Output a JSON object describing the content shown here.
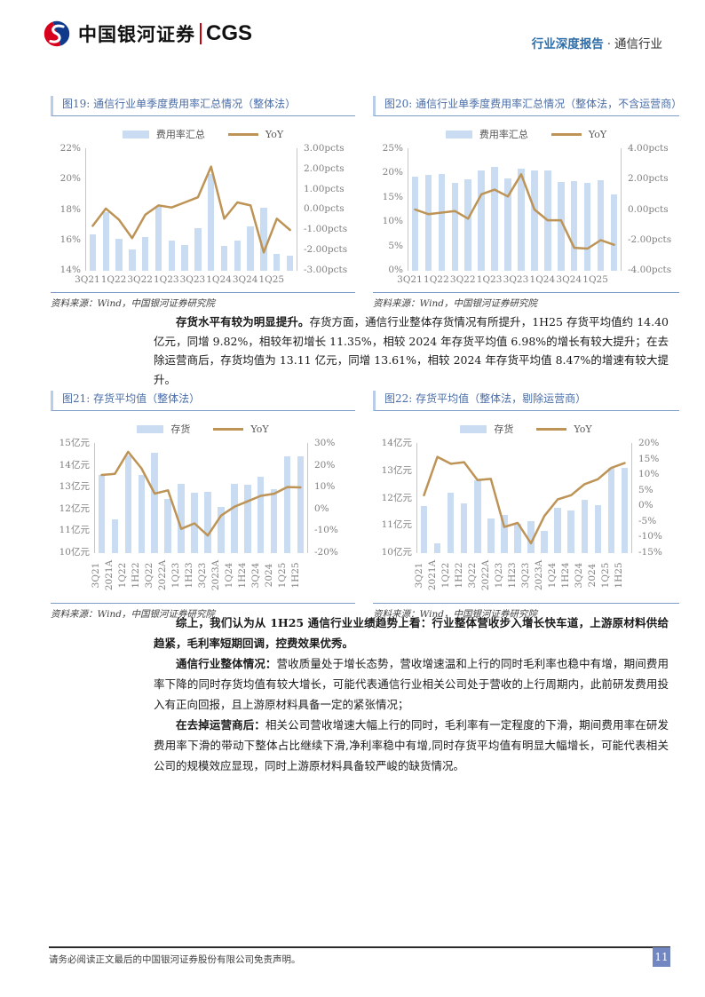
{
  "header": {
    "logo_text_cn": "中国银河证券",
    "logo_text_en": "CGS",
    "report_type": "行业深度报告",
    "dot": "·",
    "industry": "通信行业"
  },
  "colors": {
    "accent_blue": "#4A6DA7",
    "bar_fill": "#C9DCF2",
    "line_color": "#BD9356",
    "axis_text": "#7F7F7F",
    "header_blue": "#2E6DA8",
    "page_badge_bg": "#7287C1"
  },
  "chart_data": [
    {
      "type": "bar+line",
      "title_full": "图19: 通信行业单季度费用率汇总情况（整体法）",
      "source": "资料来源：Wind，中国银河证券研究院",
      "categories": [
        "3Q21",
        "4Q21",
        "1Q22",
        "2Q22",
        "3Q22",
        "4Q22",
        "1Q23",
        "2Q23",
        "3Q23",
        "4Q23",
        "1Q24",
        "2Q24",
        "3Q24",
        "4Q24",
        "1Q25",
        "2Q25"
      ],
      "x_tick_labels": [
        "3Q21",
        "1Q22",
        "3Q22",
        "1Q23",
        "3Q23",
        "1Q24",
        "3Q24",
        "1Q25"
      ],
      "x_labels_rotated": false,
      "series": [
        {
          "name": "费用率汇总",
          "type": "bar",
          "axis": "left",
          "unit": "%",
          "values": [
            16.4,
            17.8,
            16.1,
            15.4,
            16.2,
            18.2,
            16.0,
            15.7,
            16.8,
            20.3,
            15.6,
            16.0,
            16.9,
            18.1,
            15.1,
            15.0
          ]
        },
        {
          "name": "YoY",
          "type": "line",
          "axis": "right",
          "unit": "pcts",
          "values": [
            -0.8,
            0.05,
            -0.5,
            -1.4,
            -0.25,
            0.2,
            0.1,
            0.35,
            0.6,
            2.1,
            -0.45,
            0.35,
            0.2,
            -2.1,
            -0.45,
            -1.0
          ]
        }
      ],
      "left_axis": {
        "min": 14,
        "max": 22,
        "labels": [
          "22%",
          "20%",
          "18%",
          "16%",
          "14%"
        ]
      },
      "right_axis": {
        "min": -3,
        "max": 3,
        "labels": [
          "3.00pcts",
          "2.00pcts",
          "1.00pcts",
          "0.00pcts",
          "-1.00pcts",
          "-2.00pcts",
          "-3.00pcts"
        ]
      }
    },
    {
      "type": "bar+line",
      "title_full": "图20: 通信行业单季度费用率汇总情况（整体法，不含运营商）",
      "source": "资料来源：Wind，中国银河证券研究院",
      "categories": [
        "3Q21",
        "4Q21",
        "1Q22",
        "2Q22",
        "3Q22",
        "4Q22",
        "1Q23",
        "2Q23",
        "3Q23",
        "4Q23",
        "1Q24",
        "2Q24",
        "3Q24",
        "4Q24",
        "1Q25",
        "2Q25"
      ],
      "x_tick_labels": [
        "3Q21",
        "1Q22",
        "3Q22",
        "1Q23",
        "3Q23",
        "1Q24",
        "3Q24",
        "1Q25"
      ],
      "x_labels_rotated": false,
      "series": [
        {
          "name": "费用率汇总",
          "type": "bar",
          "axis": "left",
          "unit": "%",
          "values": [
            19.2,
            19.5,
            19.8,
            17.9,
            18.6,
            20.4,
            21.2,
            18.8,
            20.8,
            20.4,
            20.4,
            18.1,
            18.3,
            17.9,
            18.4,
            15.6
          ]
        },
        {
          "name": "YoY",
          "type": "line",
          "axis": "right",
          "unit": "pcts",
          "values": [
            0.0,
            -0.3,
            -0.2,
            -0.1,
            -0.6,
            1.0,
            1.3,
            0.85,
            2.3,
            0.0,
            -0.7,
            -0.7,
            -2.5,
            -2.55,
            -2.0,
            -2.3
          ]
        }
      ],
      "left_axis": {
        "min": 0,
        "max": 25,
        "labels": [
          "25%",
          "20%",
          "15%",
          "10%",
          "5%",
          "0%"
        ]
      },
      "right_axis": {
        "min": -4,
        "max": 4,
        "labels": [
          "4.00pcts",
          "2.00pcts",
          "0.00pcts",
          "-2.00pcts",
          "-4.00pcts"
        ]
      }
    },
    {
      "type": "bar+line",
      "title_full": "图21: 存货平均值（整体法）",
      "source": "资料来源：Wind，中国银河证券研究院",
      "categories": [
        "3Q21",
        "2021A",
        "1Q22",
        "1H22",
        "3Q22",
        "2022A",
        "1Q23",
        "1H23",
        "3Q23",
        "2023A",
        "1Q24",
        "1H24",
        "3Q24",
        "2024",
        "1Q25",
        "1H25"
      ],
      "x_tick_labels": [],
      "x_labels_rotated": true,
      "series": [
        {
          "name": "存货",
          "type": "bar",
          "axis": "left",
          "unit": "亿元",
          "values": [
            13.55,
            11.55,
            14.45,
            13.55,
            14.55,
            12.45,
            13.15,
            12.75,
            12.8,
            12.1,
            13.15,
            13.1,
            13.45,
            12.9,
            14.4,
            14.4
          ]
        },
        {
          "name": "YoY",
          "type": "line",
          "axis": "right",
          "unit": "%",
          "values": [
            15.5,
            16,
            26,
            18.5,
            7,
            8.5,
            -9,
            -6.5,
            -12,
            -3,
            1,
            3.5,
            6,
            6.98,
            10,
            9.82
          ]
        }
      ],
      "left_axis": {
        "min": 10,
        "max": 15,
        "labels": [
          "15亿元",
          "14亿元",
          "13亿元",
          "12亿元",
          "11亿元",
          "10亿元"
        ]
      },
      "right_axis": {
        "min": -20,
        "max": 30,
        "labels": [
          "30%",
          "20%",
          "10%",
          "0%",
          "-10%",
          "-20%"
        ]
      }
    },
    {
      "type": "bar+line",
      "title_full": "图22: 存货平均值（整体法，剔除运营商）",
      "source": "资料来源：Wind，中国银河证券研究院",
      "categories": [
        "3Q21",
        "2021A",
        "1Q22",
        "1H22",
        "3Q22",
        "2022A",
        "1Q23",
        "1H23",
        "3Q23",
        "2023A",
        "1Q24",
        "1H24",
        "3Q24",
        "2024",
        "1Q25",
        "1H25"
      ],
      "x_tick_labels": [],
      "x_labels_rotated": true,
      "series": [
        {
          "name": "存货",
          "type": "bar",
          "axis": "left",
          "unit": "亿元",
          "values": [
            11.7,
            10.35,
            12.2,
            11.8,
            12.65,
            11.25,
            11.4,
            11.05,
            11.15,
            10.8,
            11.65,
            11.55,
            11.95,
            11.75,
            13.1,
            13.11
          ]
        },
        {
          "name": "YoY",
          "type": "line",
          "axis": "right",
          "unit": "%",
          "values": [
            3.4,
            15.6,
            13.4,
            13.9,
            8.2,
            8.6,
            -6.7,
            -5.4,
            -11.9,
            -3.2,
            2.1,
            3.4,
            6.9,
            8.47,
            12.1,
            13.61
          ]
        }
      ],
      "left_axis": {
        "min": 10,
        "max": 14,
        "labels": [
          "14亿元",
          "13亿元",
          "12亿元",
          "11亿元",
          "10亿元"
        ]
      },
      "right_axis": {
        "min": -15,
        "max": 20,
        "labels": [
          "20%",
          "15%",
          "10%",
          "5%",
          "0%",
          "-5%",
          "-10%",
          "-15%"
        ]
      }
    }
  ],
  "inventory_paragraph": {
    "lead_bold": "存货水平有较为明显提升。",
    "body": "存货方面，通信行业整体存货情况有所提升，1H25 存货平均值约 14.40 亿元，同增 9.82%，相较年初增长 11.35%，相较 2024 年存货平均值 6.98%的增长有较大提升；在去除运营商后，存货均值为 13.11 亿元，同增 13.61%，相较 2024 年存货平均值 8.47%的增速有较大提升。"
  },
  "summary": {
    "paragraphs": [
      {
        "bold": "综上，我们认为从 1H25 通信行业业绩趋势上看：行业整体营收步入增长快车道，上游原材料供给趋紧，毛利率短期回调，控费效果优秀。",
        "rest": ""
      },
      {
        "bold": "通信行业整体情况：",
        "rest": "营收质量处于增长态势，营收增速温和上行的同时毛利率也稳中有增，期间费用率下降的同时存货均值有较大增长，可能代表通信行业相关公司处于营收的上行周期内，此前研发费用投入有正向回报，且上游原材料具备一定的紧张情况；"
      },
      {
        "bold": "在去掉运营商后：",
        "rest": "相关公司营收增速大幅上行的同时，毛利率有一定程度的下滑，期间费用率在研发费用率下滑的带动下整体占比继续下滑,净利率稳中有增,同时存货平均值有明显大幅增长，可能代表相关公司的规模效应显现，同时上游原材料具备较严峻的缺货情况。"
      }
    ]
  },
  "footer": {
    "disclaimer": "请务必阅读正文最后的中国银河证券股份有限公司免责声明。",
    "page_number": "11"
  }
}
